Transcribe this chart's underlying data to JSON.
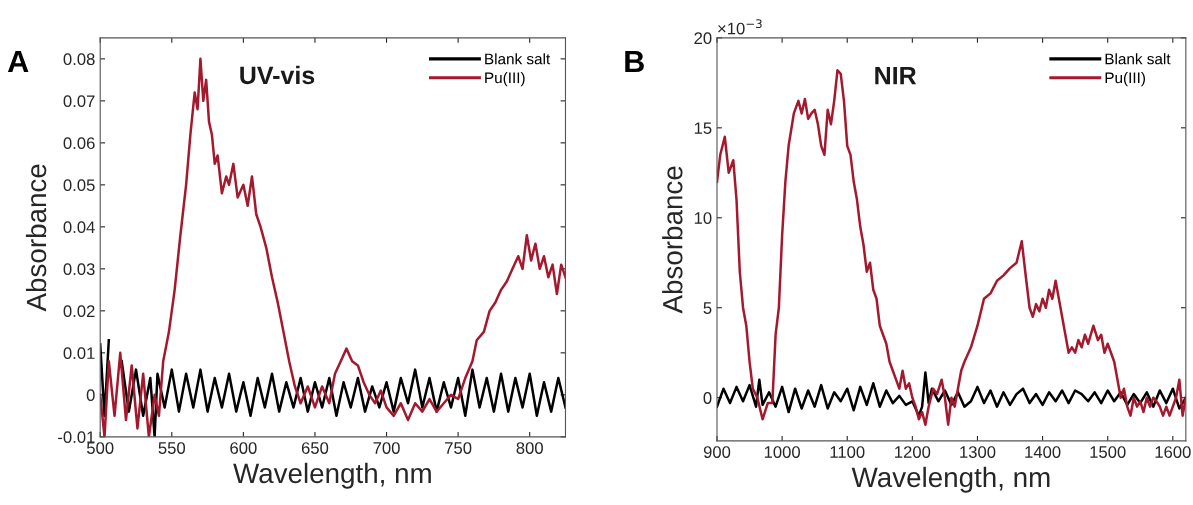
{
  "chart_data": [
    {
      "type": "line",
      "title": "UV-vis",
      "xlabel": "Wavelength, nm",
      "ylabel": "Absorbance",
      "annotations": [
        "A"
      ],
      "legend": "top right",
      "grid": false,
      "marker": "none",
      "line_style": "solid",
      "xlim": [
        500,
        825
      ],
      "xticks": [
        500,
        550,
        600,
        650,
        700,
        750,
        800
      ],
      "ylim": [
        -0.01,
        0.085
      ],
      "yticks": [
        -0.01,
        0,
        0.01,
        0.02,
        0.03,
        0.04,
        0.05,
        0.06,
        0.07,
        0.08
      ],
      "series": [
        {
          "name": "Blank salt",
          "color": "#000000",
          "x": [
            500,
            503,
            506,
            510,
            515,
            520,
            525,
            530,
            535,
            538,
            540,
            545,
            550,
            555,
            560,
            565,
            570,
            575,
            580,
            585,
            590,
            595,
            600,
            605,
            610,
            615,
            620,
            625,
            630,
            635,
            640,
            645,
            650,
            655,
            660,
            665,
            670,
            675,
            680,
            685,
            690,
            695,
            700,
            705,
            710,
            715,
            720,
            725,
            730,
            735,
            740,
            745,
            750,
            755,
            760,
            765,
            770,
            775,
            780,
            785,
            790,
            795,
            800,
            805,
            810,
            815,
            820,
            825
          ],
          "values": [
            0.012,
            -0.005,
            0.013,
            null,
            0.008,
            -0.004,
            0.006,
            -0.005,
            0.004,
            -0.01,
            0.005,
            -0.003,
            0.006,
            -0.004,
            0.005,
            -0.003,
            0.006,
            -0.004,
            0.004,
            -0.003,
            0.005,
            -0.004,
            0.003,
            -0.005,
            0.004,
            -0.003,
            0.005,
            -0.004,
            0.003,
            -0.003,
            0.004,
            -0.004,
            0.003,
            -0.003,
            0.004,
            -0.005,
            0.003,
            -0.003,
            0.004,
            -0.004,
            0.002,
            -0.003,
            0.003,
            -0.004,
            0.004,
            -0.002,
            0.006,
            -0.003,
            0.004,
            -0.004,
            0.003,
            -0.003,
            0.004,
            -0.005,
            0.006,
            -0.003,
            0.004,
            -0.004,
            0.005,
            -0.004,
            0.004,
            -0.003,
            0.005,
            -0.005,
            0.003,
            -0.004,
            0.004,
            -0.003
          ]
        },
        {
          "name": "Pu(III)",
          "color": "#a5192e",
          "x": [
            500,
            503,
            506,
            510,
            514,
            518,
            522,
            526,
            530,
            534,
            538,
            541,
            544,
            548,
            552,
            556,
            560,
            563,
            566,
            568,
            570,
            572,
            574,
            576,
            578,
            580,
            582,
            585,
            588,
            590,
            593,
            596,
            600,
            603,
            606,
            609,
            612,
            616,
            620,
            624,
            628,
            632,
            636,
            640,
            645,
            650,
            655,
            660,
            664,
            668,
            672,
            676,
            680,
            684,
            688,
            692,
            696,
            700,
            705,
            710,
            715,
            720,
            725,
            730,
            735,
            740,
            745,
            750,
            755,
            760,
            763,
            768,
            772,
            776,
            780,
            784,
            788,
            792,
            795,
            798,
            801,
            804,
            807,
            810,
            813,
            816,
            819,
            822,
            825
          ],
          "values": [
            0.0,
            -0.01,
            0.008,
            -0.005,
            0.01,
            -0.006,
            0.007,
            -0.008,
            0.005,
            -0.01,
            0.0,
            -0.005,
            0.008,
            0.015,
            0.025,
            0.038,
            0.05,
            0.062,
            0.072,
            0.068,
            0.08,
            0.07,
            0.075,
            0.065,
            0.062,
            0.055,
            0.057,
            0.048,
            0.052,
            0.05,
            0.055,
            0.047,
            0.05,
            0.045,
            0.052,
            0.043,
            0.04,
            0.035,
            0.028,
            0.022,
            0.015,
            0.008,
            0.002,
            -0.002,
            0.002,
            -0.003,
            0.002,
            -0.002,
            0.005,
            0.008,
            0.011,
            0.008,
            0.007,
            0.003,
            0.0,
            -0.002,
            0.001,
            -0.003,
            -0.005,
            -0.002,
            -0.006,
            -0.002,
            -0.004,
            -0.001,
            -0.004,
            -0.002,
            0.0,
            -0.001,
            0.004,
            0.008,
            0.013,
            0.015,
            0.02,
            0.022,
            0.025,
            0.027,
            0.03,
            0.033,
            0.03,
            0.038,
            0.032,
            0.036,
            0.03,
            0.033,
            0.028,
            0.031,
            0.024,
            0.031,
            0.028
          ]
        }
      ]
    },
    {
      "type": "line",
      "title": "NIR",
      "xlabel": "Wavelength, nm",
      "ylabel": "Absorbance",
      "annotations": [
        "B",
        "×10$^{−3}$"
      ],
      "legend": "top right",
      "grid": false,
      "marker": "none",
      "line_style": "solid",
      "xlim": [
        900,
        1620
      ],
      "xticks": [
        900,
        1000,
        1100,
        1200,
        1300,
        1400,
        1500,
        1600
      ],
      "ylim": [
        -2.4,
        20
      ],
      "yticks": [
        0,
        5,
        10,
        15,
        20
      ],
      "series": [
        {
          "name": "Blank salt",
          "color": "#000000",
          "x": [
            900,
            910,
            920,
            930,
            940,
            950,
            960,
            965,
            970,
            980,
            990,
            1000,
            1010,
            1020,
            1030,
            1040,
            1050,
            1060,
            1070,
            1080,
            1090,
            1100,
            1110,
            1120,
            1130,
            1140,
            1150,
            1160,
            1170,
            1180,
            1190,
            1200,
            1210,
            1215,
            1220,
            1225,
            1230,
            1240,
            1250,
            1260,
            1270,
            1280,
            1290,
            1300,
            1310,
            1320,
            1330,
            1340,
            1350,
            1360,
            1370,
            1380,
            1390,
            1400,
            1410,
            1420,
            1430,
            1440,
            1450,
            1460,
            1470,
            1480,
            1490,
            1500,
            1510,
            1520,
            1530,
            1540,
            1550,
            1560,
            1570,
            1580,
            1590,
            1600,
            1610,
            1620
          ],
          "values": [
            -0.5,
            0.5,
            -0.3,
            0.6,
            -0.2,
            0.7,
            -0.5,
            1.0,
            -0.4,
            0.3,
            -0.5,
            0.6,
            -0.8,
            0.5,
            -0.6,
            0.4,
            -0.5,
            0.7,
            -0.6,
            0.3,
            -0.2,
            0.5,
            -0.7,
            0.6,
            -0.4,
            0.8,
            -0.5,
            0.4,
            -0.3,
            0.1,
            -0.4,
            -0.2,
            -1.0,
            -0.5,
            1.4,
            -0.3,
            0.5,
            -0.2,
            0.4,
            -0.4,
            0.3,
            -0.5,
            -0.2,
            0.6,
            -0.3,
            0.4,
            -0.5,
            0.3,
            -0.4,
            0.2,
            0.5,
            -0.3,
            0.2,
            -0.4,
            0.3,
            -0.2,
            0.4,
            -0.3,
            0.4,
            0.2,
            -0.2,
            0.3,
            -0.3,
            0.4,
            -0.2,
            0.3,
            -0.4,
            0.2,
            -0.3,
            0.3,
            -0.5,
            0.4,
            -0.3,
            0.5,
            -0.6,
            0.0
          ]
        },
        {
          "name": "Pu(III)",
          "color": "#a5192e",
          "x": [
            900,
            905,
            912,
            918,
            925,
            930,
            935,
            940,
            945,
            950,
            955,
            962,
            970,
            978,
            985,
            990,
            995,
            1000,
            1005,
            1010,
            1018,
            1025,
            1030,
            1035,
            1040,
            1045,
            1050,
            1055,
            1060,
            1065,
            1070,
            1075,
            1080,
            1085,
            1090,
            1095,
            1100,
            1105,
            1110,
            1115,
            1120,
            1125,
            1130,
            1135,
            1140,
            1145,
            1150,
            1155,
            1160,
            1165,
            1170,
            1175,
            1180,
            1185,
            1190,
            1195,
            1200,
            1205,
            1210,
            1215,
            1220,
            1225,
            1232,
            1238,
            1245,
            1250,
            1255,
            1260,
            1265,
            1270,
            1275,
            1280,
            1290,
            1300,
            1310,
            1320,
            1330,
            1340,
            1350,
            1360,
            1368,
            1375,
            1380,
            1385,
            1390,
            1395,
            1400,
            1405,
            1410,
            1415,
            1420,
            1425,
            1430,
            1435,
            1440,
            1445,
            1450,
            1455,
            1460,
            1465,
            1470,
            1478,
            1485,
            1490,
            1495,
            1500,
            1505,
            1510,
            1515,
            1520,
            1525,
            1530,
            1535,
            1540,
            1545,
            1550,
            1555,
            1560,
            1565,
            1570,
            1575,
            1580,
            1585,
            1590,
            1595,
            1600,
            1605,
            1610,
            1615,
            1620
          ],
          "values": [
            12,
            13.5,
            14.5,
            12.5,
            13.2,
            11,
            7,
            5,
            4,
            2,
            0.5,
            0,
            -1.2,
            -0.3,
            -0.3,
            3.5,
            5,
            9,
            12,
            14,
            15.8,
            16.5,
            15.8,
            16.6,
            15.5,
            15.8,
            16,
            15.2,
            14,
            13.5,
            16,
            15.2,
            16.5,
            18.2,
            18,
            16.5,
            14,
            13.5,
            12,
            11,
            9.5,
            8.5,
            7,
            7.5,
            6,
            5.5,
            4,
            3.5,
            3,
            2,
            1.5,
            1,
            0.5,
            1.5,
            0.5,
            0.8,
            0,
            -0.5,
            -1.2,
            -0.8,
            -1.5,
            -0.5,
            0.5,
            0.2,
            1,
            0,
            -1.5,
            0,
            -0.5,
            0.5,
            1.5,
            2,
            2.8,
            4,
            5.5,
            5.8,
            6.5,
            6.8,
            7.2,
            7.5,
            8.7,
            6.5,
            5,
            4.5,
            5.2,
            4.8,
            5.5,
            5,
            6,
            5.5,
            6.5,
            5.5,
            4.5,
            3.5,
            2.5,
            2.8,
            2.5,
            3.2,
            2.8,
            3.5,
            3,
            4,
            3.2,
            3.5,
            2.5,
            3,
            2.5,
            2,
            1,
            0,
            0.5,
            -0.5,
            -1,
            0,
            -0.5,
            -0.2,
            -0.8,
            0,
            -0.5,
            0,
            -0.2,
            -0.5,
            -1,
            -0.5,
            -1,
            -0.5,
            0,
            1,
            -1,
            0
          ]
        }
      ]
    }
  ]
}
